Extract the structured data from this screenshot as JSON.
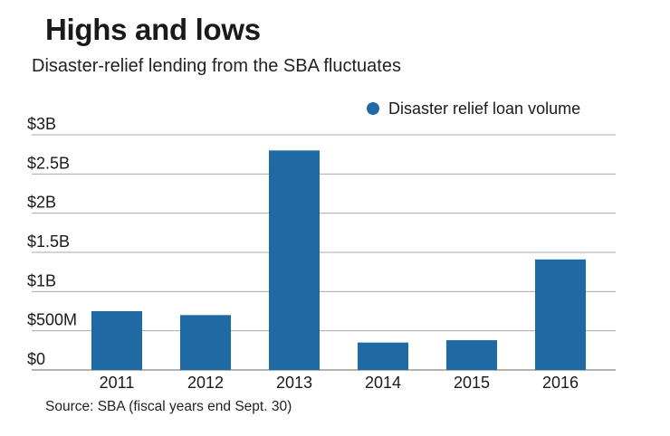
{
  "header": {
    "title": "Highs and lows",
    "subtitle": "Disaster-relief lending from the SBA fluctuates"
  },
  "footer": {
    "source": "Source: SBA (fiscal years end Sept. 30)"
  },
  "colors": {
    "bar": "#1f6aa5",
    "grid": "#aaaaaa",
    "text": "#1a1a1a"
  },
  "chart_data": {
    "type": "bar",
    "title": "Highs and lows",
    "subtitle": "Disaster-relief lending from the SBA fluctuates",
    "xlabel": "",
    "ylabel": "",
    "categories": [
      "2011",
      "2012",
      "2013",
      "2014",
      "2015",
      "2016"
    ],
    "series": [
      {
        "name": "Disaster relief loan volume",
        "values": [
          0.75,
          0.7,
          2.8,
          0.35,
          0.38,
          1.41
        ]
      }
    ],
    "yticks": [
      0,
      0.5,
      1,
      1.5,
      2,
      2.5,
      3
    ],
    "ytick_labels": [
      "$0",
      "$500M",
      "$1B",
      "$1.5B",
      "$2B",
      "$2.5B",
      "$3B"
    ],
    "ylim": [
      0,
      3
    ],
    "grid": true,
    "legend_position": "top-right"
  }
}
